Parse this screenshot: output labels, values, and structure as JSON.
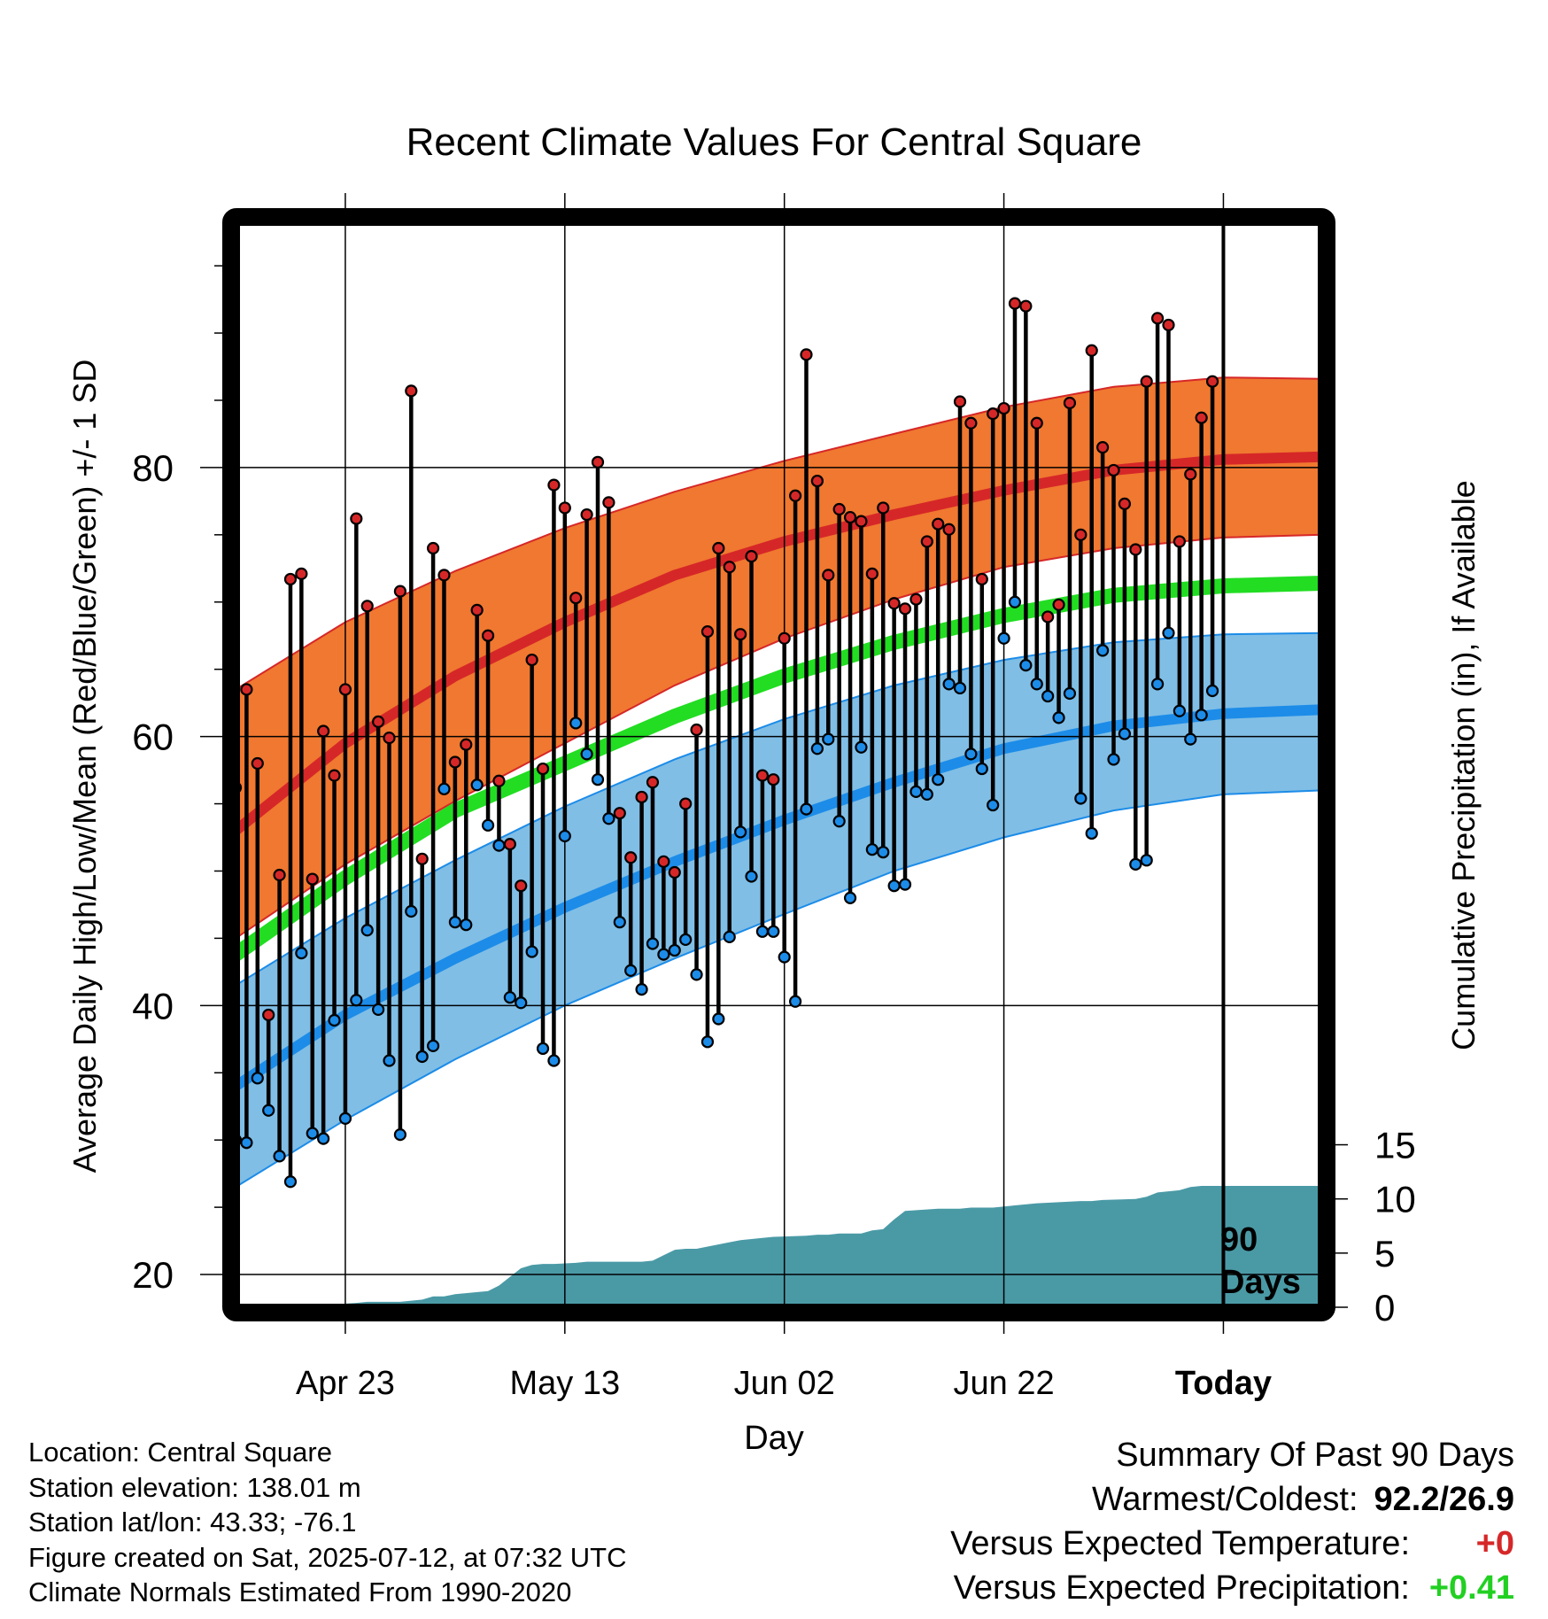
{
  "title": "Recent Climate Values For Central Square",
  "y_left_label": "Average Daily High/Low/Mean (Red/Blue/Green) +/- 1 SD",
  "y_right_label": "Cumulative Precipitation (in), If Available",
  "x_label": "Day",
  "today_marker": {
    "line1": "90",
    "line2": "Days"
  },
  "info": {
    "location": "Location: Central Square",
    "elevation": "Station elevation: 138.01 m",
    "latlon": "Station lat/lon: 43.33; -76.1",
    "created": "Figure created on Sat, 2025-07-12, at 07:32 UTC",
    "normals": "Climate Normals Estimated From 1990-2020"
  },
  "summary": {
    "title": "Summary Of Past 90 Days",
    "warm_cold_label": "Warmest/Coldest:",
    "warm_cold_value": "92.2/26.9",
    "temp_label": "Versus Expected Temperature:",
    "temp_value": "+0",
    "precip_label": "Versus Expected Precipitation:",
    "precip_value": "+0.41"
  },
  "chart_data": {
    "type": "line",
    "x_range_days": [
      -90,
      9
    ],
    "y_left_range": [
      17.5,
      98.3
    ],
    "y_left_ticks": [
      20,
      40,
      60,
      80
    ],
    "y_right_ticks": [
      0,
      5,
      10,
      15
    ],
    "x_ticks": [
      {
        "day": -80,
        "label": "Apr 23"
      },
      {
        "day": -60,
        "label": "May 13"
      },
      {
        "day": -40,
        "label": "Jun 02"
      },
      {
        "day": -20,
        "label": "Jun 22"
      },
      {
        "day": 0,
        "label": "Today"
      }
    ],
    "normals": {
      "days": [
        -90,
        -80,
        -70,
        -60,
        -50,
        -40,
        -30,
        -20,
        -10,
        0,
        9
      ],
      "high": [
        53.0,
        59.5,
        64.5,
        68.5,
        72.0,
        74.5,
        76.5,
        78.3,
        79.8,
        80.6,
        80.8
      ],
      "high_sd_upper": [
        63.5,
        68.5,
        72.3,
        75.5,
        78.2,
        80.5,
        82.5,
        84.5,
        86.0,
        86.7,
        86.6
      ],
      "high_sd_lower": [
        45.0,
        50.5,
        55.2,
        59.5,
        63.8,
        67.3,
        70.2,
        72.6,
        74.0,
        74.8,
        75.0
      ],
      "mean": [
        43.8,
        49.5,
        54.5,
        58.0,
        61.5,
        64.5,
        67.0,
        69.0,
        70.5,
        71.2,
        71.4
      ],
      "low": [
        34.0,
        39.3,
        43.5,
        47.3,
        50.7,
        53.8,
        56.6,
        59.1,
        60.8,
        61.7,
        62.0
      ],
      "low_sd_upper": [
        41.5,
        46.5,
        50.8,
        54.8,
        58.3,
        61.3,
        63.8,
        65.7,
        67.0,
        67.6,
        67.7
      ],
      "low_sd_lower": [
        26.5,
        31.5,
        36.0,
        40.0,
        43.5,
        46.8,
        50.0,
        52.5,
        54.5,
        55.7,
        56.0
      ]
    },
    "daily": {
      "start_day": -90,
      "high": [
        56.2,
        63.5,
        58.0,
        39.3,
        49.7,
        71.7,
        72.1,
        49.4,
        60.4,
        57.1,
        63.5,
        76.2,
        69.7,
        61.1,
        59.9,
        70.8,
        85.7,
        50.9,
        74.0,
        72.0,
        58.1,
        59.4,
        69.4,
        67.5,
        56.7,
        52.0,
        48.9,
        65.7,
        57.6,
        78.7,
        77.0,
        70.3,
        76.5,
        80.4,
        77.4,
        54.3,
        51.0,
        55.5,
        56.6,
        50.7,
        49.9,
        55.0,
        60.5,
        67.8,
        74.0,
        72.6,
        67.6,
        73.4,
        57.1,
        56.8,
        67.3,
        77.9,
        88.4,
        79.0,
        72.0,
        76.9,
        76.3,
        76.0,
        72.1,
        77.0,
        69.9,
        69.5,
        70.2,
        74.5,
        75.8,
        75.4,
        84.9,
        83.3,
        71.7,
        84.0,
        84.4,
        92.2,
        92.0,
        83.3,
        68.9,
        69.8,
        84.8,
        75.0,
        88.7,
        81.5,
        79.8,
        77.3,
        73.9,
        86.4,
        91.1,
        90.6,
        74.5,
        79.5,
        83.7,
        86.4
      ],
      "low": [
        30.0,
        29.8,
        34.6,
        32.2,
        28.8,
        26.9,
        43.9,
        30.5,
        30.1,
        38.9,
        31.6,
        40.4,
        45.6,
        39.7,
        35.9,
        30.4,
        47.0,
        36.2,
        37.0,
        56.1,
        46.2,
        46.0,
        56.4,
        53.4,
        51.9,
        40.6,
        40.2,
        44.0,
        36.8,
        35.9,
        52.6,
        61.0,
        58.7,
        56.8,
        53.9,
        46.2,
        42.6,
        41.2,
        44.6,
        43.8,
        44.1,
        44.9,
        42.3,
        37.3,
        39.0,
        45.1,
        52.9,
        49.6,
        45.5,
        45.5,
        43.6,
        40.3,
        54.6,
        59.1,
        59.8,
        53.7,
        48.0,
        59.2,
        51.6,
        51.4,
        48.9,
        49.0,
        55.9,
        55.7,
        56.8,
        63.9,
        63.6,
        58.7,
        57.6,
        54.9,
        67.3,
        70.0,
        65.3,
        63.9,
        63.0,
        61.4,
        63.2,
        55.4,
        52.8,
        66.4,
        58.3,
        60.2,
        50.5,
        50.8,
        63.9,
        67.7,
        61.9,
        59.8,
        61.6,
        63.4
      ]
    },
    "precip": {
      "days": [
        -83,
        -82,
        -79,
        -78,
        -76,
        -75,
        -73,
        -72,
        -71,
        -70,
        -67,
        -66,
        -65,
        -64,
        -63,
        -62,
        -61,
        -59,
        -58,
        -56,
        -55,
        -53,
        -52,
        -51,
        -50,
        -49,
        -48,
        -45,
        -44,
        -42,
        -41,
        -38,
        -37,
        -36,
        -35,
        -34,
        -33,
        -32,
        -31,
        -30,
        -29,
        -26,
        -25,
        -24,
        -23,
        -22,
        -21,
        -19,
        -17,
        -15,
        -13,
        -12,
        -11,
        -8,
        -7,
        -6,
        -4,
        -3,
        -2,
        0,
        9
      ],
      "values": [
        0.2,
        0.2,
        0.4,
        0.5,
        0.5,
        0.5,
        0.7,
        1.0,
        1.0,
        1.2,
        1.5,
        2.0,
        2.8,
        3.6,
        3.9,
        4.0,
        4.0,
        4.1,
        4.2,
        4.2,
        4.2,
        4.2,
        4.3,
        4.8,
        5.3,
        5.4,
        5.4,
        6.0,
        6.2,
        6.4,
        6.5,
        6.6,
        6.7,
        6.7,
        6.8,
        6.8,
        6.8,
        7.1,
        7.2,
        8.1,
        8.9,
        9.1,
        9.1,
        9.1,
        9.2,
        9.2,
        9.2,
        9.4,
        9.6,
        9.7,
        9.8,
        9.8,
        9.9,
        10.0,
        10.2,
        10.6,
        10.8,
        11.1,
        11.2,
        11.2,
        11.2
      ]
    }
  },
  "colors": {
    "high_band": "#f07830",
    "high_line": "#d62728",
    "mean_line": "#22dd22",
    "low_band": "#80bee6",
    "low_line": "#1c8ce8",
    "precip_fill": "#4a9aa6",
    "frame": "#000000"
  }
}
